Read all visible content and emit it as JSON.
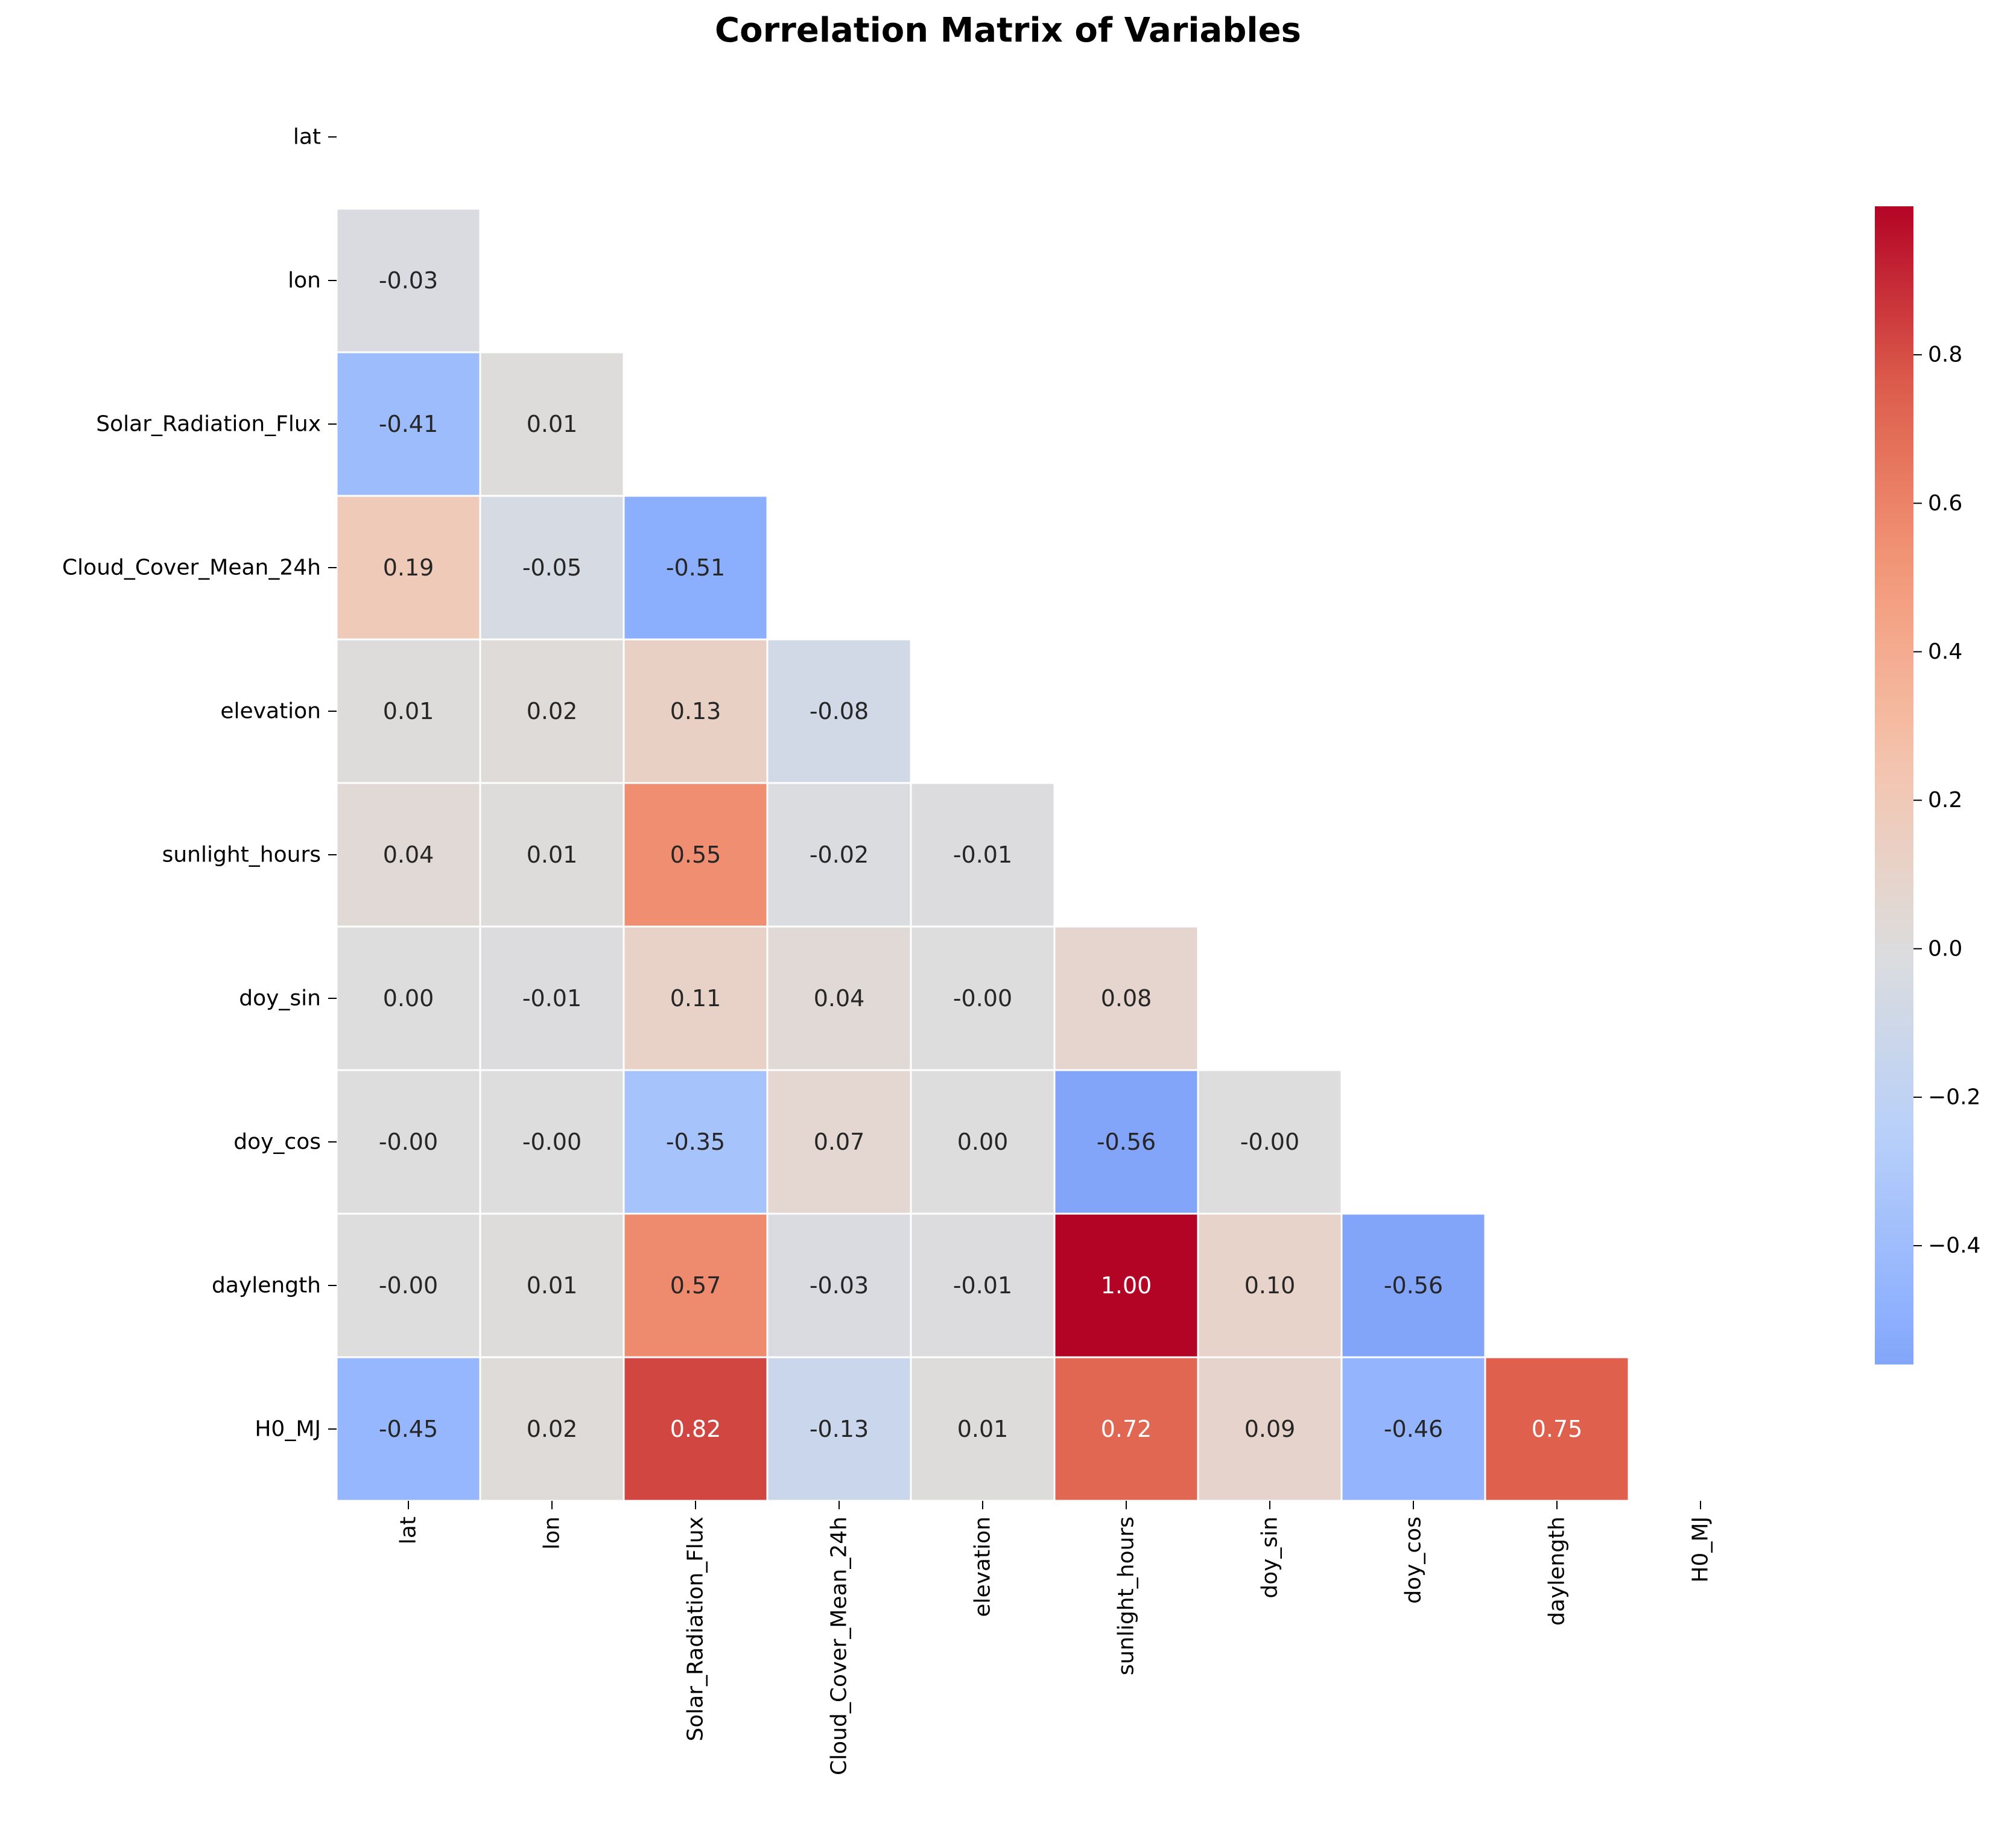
{
  "chart_data": {
    "type": "heatmap",
    "title": "Correlation Matrix of Variables",
    "xlabel": "",
    "ylabel": "",
    "variables": [
      "lat",
      "lon",
      "Solar_Radiation_Flux",
      "Cloud_Cover_Mean_24h",
      "elevation",
      "sunlight_hours",
      "doy_sin",
      "doy_cos",
      "daylength",
      "H0_MJ"
    ],
    "mask": "upper triangle including diagonal",
    "matrix": [
      [
        null,
        null,
        null,
        null,
        null,
        null,
        null,
        null,
        null,
        null
      ],
      [
        -0.03,
        null,
        null,
        null,
        null,
        null,
        null,
        null,
        null,
        null
      ],
      [
        -0.41,
        0.01,
        null,
        null,
        null,
        null,
        null,
        null,
        null,
        null
      ],
      [
        0.19,
        -0.05,
        -0.51,
        null,
        null,
        null,
        null,
        null,
        null,
        null
      ],
      [
        0.01,
        0.02,
        0.13,
        -0.08,
        null,
        null,
        null,
        null,
        null,
        null
      ],
      [
        0.04,
        0.01,
        0.55,
        -0.02,
        -0.01,
        null,
        null,
        null,
        null,
        null
      ],
      [
        0.0,
        -0.01,
        0.11,
        0.04,
        -0.0,
        0.08,
        null,
        null,
        null,
        null
      ],
      [
        -0.0,
        -0.0,
        -0.35,
        0.07,
        0.0,
        -0.56,
        -0.0,
        null,
        null,
        null
      ],
      [
        -0.0,
        0.01,
        0.57,
        -0.03,
        -0.01,
        1.0,
        0.1,
        -0.56,
        null,
        null
      ],
      [
        -0.45,
        0.02,
        0.82,
        -0.13,
        0.01,
        0.72,
        0.09,
        -0.46,
        0.75,
        null
      ]
    ],
    "annotations": [
      [
        null,
        null,
        null,
        null,
        null,
        null,
        null,
        null,
        null,
        null
      ],
      [
        "-0.03",
        null,
        null,
        null,
        null,
        null,
        null,
        null,
        null,
        null
      ],
      [
        "-0.41",
        "0.01",
        null,
        null,
        null,
        null,
        null,
        null,
        null,
        null
      ],
      [
        "0.19",
        "-0.05",
        "-0.51",
        null,
        null,
        null,
        null,
        null,
        null,
        null
      ],
      [
        "0.01",
        "0.02",
        "0.13",
        "-0.08",
        null,
        null,
        null,
        null,
        null,
        null
      ],
      [
        "0.04",
        "0.01",
        "0.55",
        "-0.02",
        "-0.01",
        null,
        null,
        null,
        null,
        null
      ],
      [
        "0.00",
        "-0.01",
        "0.11",
        "0.04",
        "-0.00",
        "0.08",
        null,
        null,
        null,
        null
      ],
      [
        "-0.00",
        "-0.00",
        "-0.35",
        "0.07",
        "0.00",
        "-0.56",
        "-0.00",
        null,
        null,
        null
      ],
      [
        "-0.00",
        "0.01",
        "0.57",
        "-0.03",
        "-0.01",
        "1.00",
        "0.10",
        "-0.56",
        null,
        null
      ],
      [
        "-0.45",
        "0.02",
        "0.82",
        "-0.13",
        "0.01",
        "0.72",
        "0.09",
        "-0.46",
        "0.75",
        null
      ]
    ],
    "colormap": "coolwarm",
    "center": 0,
    "vmin": -0.56,
    "vmax": 1.0,
    "colorbar": {
      "ticks": [
        -0.4,
        -0.2,
        0.0,
        0.2,
        0.4,
        0.6,
        0.8
      ],
      "tick_labels": [
        "−0.4",
        "−0.2",
        "0.0",
        "0.2",
        "0.4",
        "0.6",
        "0.8"
      ]
    },
    "grid": false,
    "legend": "colorbar right"
  }
}
